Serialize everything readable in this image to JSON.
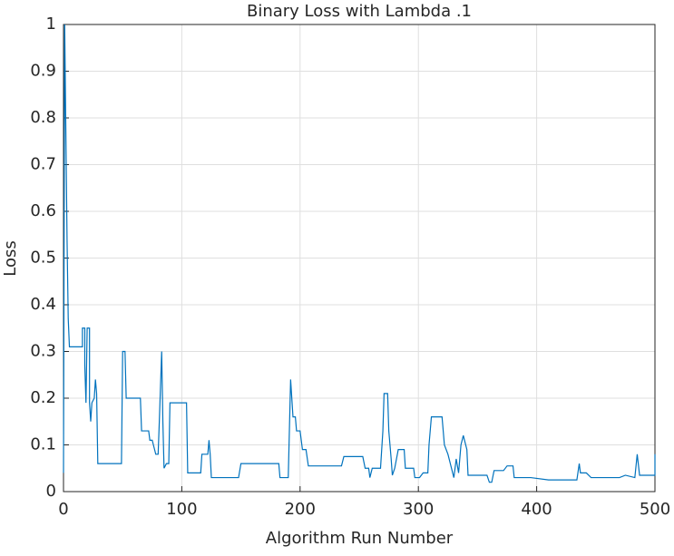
{
  "chart_data": {
    "type": "line",
    "title": "Binary Loss with Lambda .1",
    "xlabel": "Algorithm Run Number",
    "ylabel": "Loss",
    "xlim": [
      0,
      500
    ],
    "ylim": [
      0,
      1
    ],
    "xticks": [
      0,
      100,
      200,
      300,
      400,
      500
    ],
    "yticks": [
      0,
      0.1,
      0.2,
      0.3,
      0.4,
      0.5,
      0.6,
      0.7,
      0.8,
      0.9,
      1
    ],
    "grid": true,
    "series": [
      {
        "color": "#0072bd",
        "x": [
          0,
          1,
          2,
          3,
          4,
          5,
          16,
          16,
          18,
          18,
          19,
          20,
          22,
          22,
          23,
          24,
          26,
          27,
          28,
          29,
          49,
          50,
          52,
          53,
          65,
          66,
          72,
          73,
          75,
          76,
          78,
          80,
          81,
          83,
          84,
          85,
          87,
          89,
          90,
          104,
          105,
          116,
          117,
          122,
          123,
          124,
          125,
          148,
          150,
          182,
          183,
          190,
          192,
          194,
          196,
          197,
          200,
          202,
          205,
          207,
          235,
          237,
          253,
          255,
          258,
          259,
          261,
          268,
          270,
          271,
          274,
          275,
          277,
          278,
          280,
          283,
          288,
          289,
          296,
          297,
          301,
          304,
          308,
          309,
          311,
          320,
          322,
          325,
          327,
          330,
          332,
          334,
          336,
          338,
          341,
          342,
          358,
          360,
          362,
          364,
          372,
          375,
          380,
          381,
          395,
          410,
          434,
          436,
          437,
          442,
          446,
          470,
          475,
          483,
          485,
          487,
          500,
          500
        ],
        "values": [
          0.04,
          1,
          0.77,
          0.54,
          0.37,
          0.31,
          0.31,
          0.35,
          0.35,
          0.27,
          0.19,
          0.35,
          0.35,
          0.19,
          0.15,
          0.19,
          0.2,
          0.24,
          0.21,
          0.06,
          0.06,
          0.3,
          0.3,
          0.2,
          0.2,
          0.13,
          0.13,
          0.11,
          0.11,
          0.1,
          0.08,
          0.08,
          0.15,
          0.3,
          0.15,
          0.05,
          0.06,
          0.06,
          0.19,
          0.19,
          0.04,
          0.04,
          0.08,
          0.08,
          0.11,
          0.08,
          0.03,
          0.03,
          0.06,
          0.06,
          0.03,
          0.03,
          0.24,
          0.16,
          0.16,
          0.13,
          0.13,
          0.09,
          0.09,
          0.055,
          0.055,
          0.075,
          0.075,
          0.05,
          0.05,
          0.03,
          0.05,
          0.05,
          0.13,
          0.21,
          0.21,
          0.13,
          0.07,
          0.035,
          0.05,
          0.09,
          0.09,
          0.05,
          0.05,
          0.03,
          0.03,
          0.04,
          0.04,
          0.1,
          0.16,
          0.16,
          0.1,
          0.08,
          0.06,
          0.03,
          0.07,
          0.04,
          0.1,
          0.12,
          0.09,
          0.035,
          0.035,
          0.02,
          0.02,
          0.045,
          0.045,
          0.055,
          0.055,
          0.03,
          0.03,
          0.025,
          0.025,
          0.06,
          0.04,
          0.04,
          0.03,
          0.03,
          0.035,
          0.03,
          0.08,
          0.035,
          0.035,
          0.08
        ]
      }
    ]
  }
}
